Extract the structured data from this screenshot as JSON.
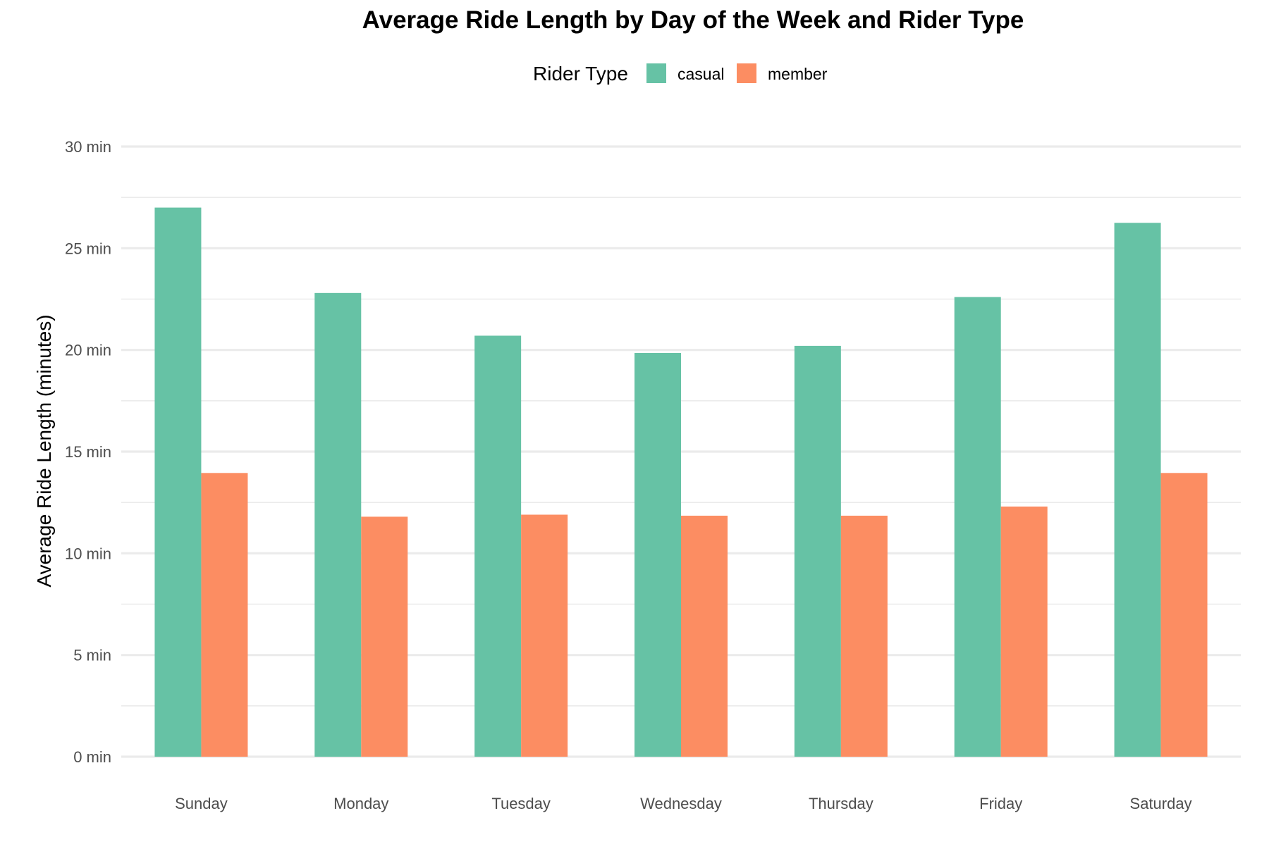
{
  "chart_data": {
    "type": "bar",
    "title": "Average Ride Length by Day of the Week and Rider Type",
    "xlabel": "",
    "ylabel": "Average Ride Length (minutes)",
    "y_tick_labels": [
      "0 min",
      "5 min",
      "10 min",
      "15 min",
      "20 min",
      "25 min",
      "30 min"
    ],
    "y_ticks": [
      0,
      5,
      10,
      15,
      20,
      25,
      30
    ],
    "ylim": [
      0,
      30
    ],
    "grid": true,
    "legend": {
      "title": "Rider Type",
      "placement": "top"
    },
    "categories": [
      "Sunday",
      "Monday",
      "Tuesday",
      "Wednesday",
      "Thursday",
      "Friday",
      "Saturday"
    ],
    "series": [
      {
        "name": "casual",
        "color": "#66C2A5",
        "values": [
          27.0,
          22.8,
          20.7,
          19.85,
          20.2,
          22.6,
          26.25
        ]
      },
      {
        "name": "member",
        "color": "#FC8D62",
        "values": [
          13.95,
          11.8,
          11.9,
          11.85,
          11.85,
          12.3,
          13.95
        ]
      }
    ]
  }
}
